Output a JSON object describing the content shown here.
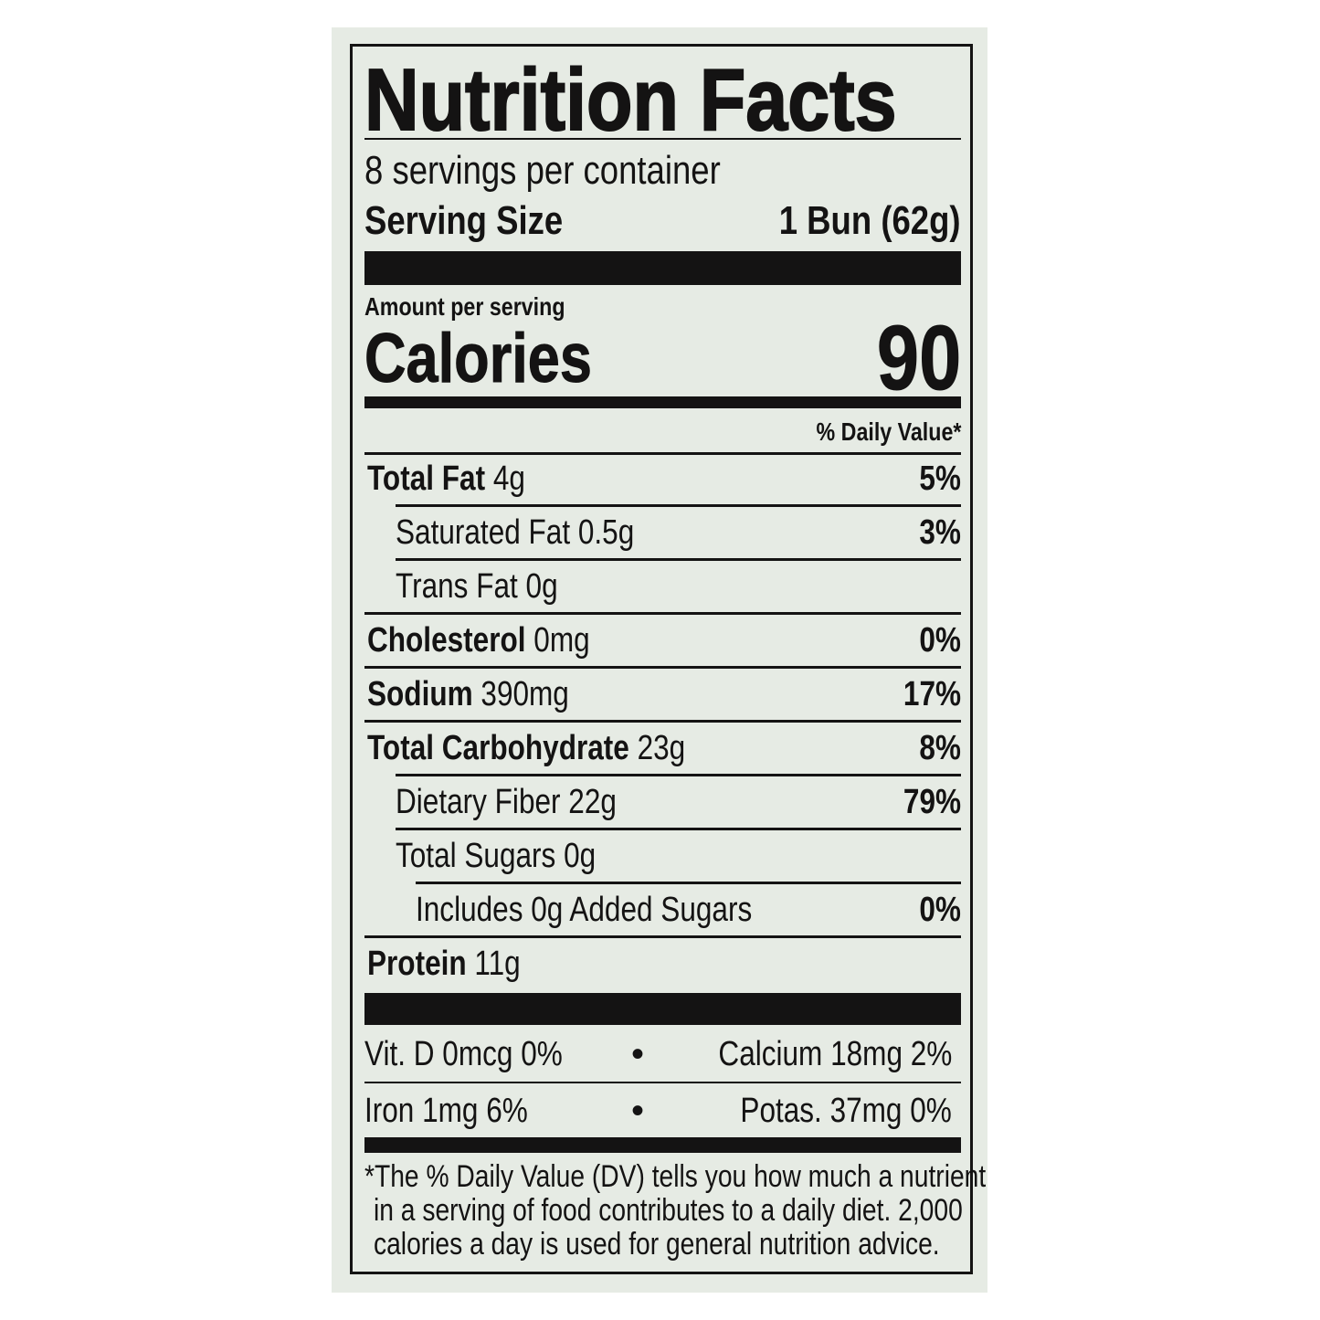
{
  "title": "Nutrition Facts",
  "servings_per_container": "8 servings per container",
  "serving_size": {
    "label": "Serving Size",
    "value": "1 Bun (62g)"
  },
  "amount_per_serving": "Amount per serving",
  "calories": {
    "label": "Calories",
    "value": "90"
  },
  "daily_value_header": "% Daily Value*",
  "nutrients": [
    {
      "name": "Total Fat",
      "amount": "4g",
      "dv": "5%",
      "bold": true,
      "indent": 0
    },
    {
      "name": "Saturated Fat",
      "amount": "0.5g",
      "dv": "3%",
      "bold": false,
      "indent": 1
    },
    {
      "name": "Trans Fat",
      "amount": "0g",
      "dv": "",
      "bold": false,
      "indent": 1
    },
    {
      "name": "Cholesterol",
      "amount": "0mg",
      "dv": "0%",
      "bold": true,
      "indent": 0
    },
    {
      "name": "Sodium",
      "amount": "390mg",
      "dv": "17%",
      "bold": true,
      "indent": 0
    },
    {
      "name": "Total Carbohydrate",
      "amount": "23g",
      "dv": "8%",
      "bold": true,
      "indent": 0
    },
    {
      "name": "Dietary Fiber",
      "amount": "22g",
      "dv": "79%",
      "bold": false,
      "indent": 1
    },
    {
      "name": "Total Sugars",
      "amount": "0g",
      "dv": "",
      "bold": false,
      "indent": 1
    },
    {
      "name": "Includes 0g Added Sugars",
      "amount": "",
      "dv": "0%",
      "bold": false,
      "indent": 2
    },
    {
      "name": "Protein",
      "amount": "11g",
      "dv": "",
      "bold": true,
      "indent": 0
    }
  ],
  "vitamins": [
    {
      "left": "Vit. D 0mcg 0%",
      "right": "Calcium 18mg 2%"
    },
    {
      "left": "Iron 1mg 6%",
      "right": "Potas. 37mg 0%"
    }
  ],
  "bullet": "•",
  "footnote": [
    "*The % Daily Value (DV) tells you how much a nutrient",
    "in a serving of food contributes to a daily diet. 2,000",
    "calories a day is used for general nutrition advice."
  ]
}
